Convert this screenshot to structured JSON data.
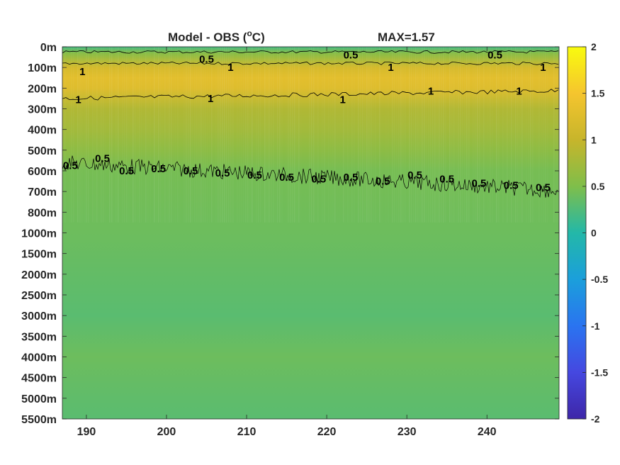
{
  "chart_data": {
    "type": "heatmap",
    "title": "Model - OBS (°C)",
    "title_parts": {
      "text": "Model - OBS (",
      "superscript": "o",
      "unit_tail": "C)"
    },
    "annotation": "MAX=1.57",
    "xlabel": "",
    "ylabel": "",
    "x_ticks": [
      190,
      200,
      210,
      220,
      230,
      240
    ],
    "xlim": [
      187,
      249
    ],
    "y_tick_labels": [
      "0m",
      "100m",
      "200m",
      "300m",
      "400m",
      "500m",
      "600m",
      "700m",
      "800m",
      "1000m",
      "1500m",
      "2000m",
      "2500m",
      "3000m",
      "3500m",
      "4000m",
      "4500m",
      "5000m",
      "5500m"
    ],
    "y_values": [
      0,
      100,
      200,
      300,
      400,
      500,
      600,
      700,
      800,
      1000,
      1500,
      2000,
      2500,
      3000,
      3500,
      4000,
      4500,
      5000,
      5500
    ],
    "colorbar": {
      "range": [
        -2,
        2
      ],
      "ticks": [
        2,
        1.5,
        1,
        0.5,
        0,
        -0.5,
        -1,
        -1.5,
        -2
      ],
      "tick_labels": [
        "2",
        "1.5",
        "1",
        "0.5",
        "0",
        "-0.5",
        "-1",
        "-1.5",
        "-2"
      ],
      "colormap": "parula"
    },
    "depth_profile": [
      {
        "depth_m": 0,
        "value": 0.2
      },
      {
        "depth_m": 30,
        "value": 0.55
      },
      {
        "depth_m": 100,
        "value": 1.15
      },
      {
        "depth_m": 150,
        "value": 1.3
      },
      {
        "depth_m": 200,
        "value": 1.25
      },
      {
        "depth_m": 300,
        "value": 0.85
      },
      {
        "depth_m": 400,
        "value": 0.75
      },
      {
        "depth_m": 500,
        "value": 0.6
      },
      {
        "depth_m": 600,
        "value": 0.45
      },
      {
        "depth_m": 800,
        "value": 0.42
      },
      {
        "depth_m": 1000,
        "value": 0.4
      },
      {
        "depth_m": 2000,
        "value": 0.35
      },
      {
        "depth_m": 3000,
        "value": 0.3
      },
      {
        "depth_m": 4000,
        "value": 0.4
      },
      {
        "depth_m": 5000,
        "value": 0.33
      },
      {
        "depth_m": 5500,
        "value": 0.3
      }
    ],
    "contours": [
      {
        "level": 0.5,
        "labels": [
          {
            "text": "0.5",
            "x": 205,
            "depth_m": 60
          },
          {
            "text": "0.5",
            "x": 223,
            "depth_m": 40
          },
          {
            "text": "0.5",
            "x": 241,
            "depth_m": 40
          }
        ]
      },
      {
        "level": 1,
        "labels": [
          {
            "text": "1",
            "x": 189.5,
            "depth_m": 120
          },
          {
            "text": "1",
            "x": 208,
            "depth_m": 100
          },
          {
            "text": "1",
            "x": 228,
            "depth_m": 100
          },
          {
            "text": "1",
            "x": 247,
            "depth_m": 100
          },
          {
            "text": "1",
            "x": 189,
            "depth_m": 255
          },
          {
            "text": "1",
            "x": 205.5,
            "depth_m": 250
          },
          {
            "text": "1",
            "x": 222,
            "depth_m": 255
          },
          {
            "text": "1",
            "x": 233,
            "depth_m": 215
          },
          {
            "text": "1",
            "x": 244,
            "depth_m": 215
          }
        ]
      },
      {
        "level": 0.5,
        "labels": [
          {
            "text": "0.5",
            "x": 188,
            "depth_m": 575
          },
          {
            "text": "0.5",
            "x": 192,
            "depth_m": 540
          },
          {
            "text": "0.5",
            "x": 195,
            "depth_m": 600
          },
          {
            "text": "0.5",
            "x": 199,
            "depth_m": 590
          },
          {
            "text": "0.5",
            "x": 203,
            "depth_m": 600
          },
          {
            "text": "0.5",
            "x": 207,
            "depth_m": 610
          },
          {
            "text": "0.5",
            "x": 211,
            "depth_m": 620
          },
          {
            "text": "0.5",
            "x": 215,
            "depth_m": 630
          },
          {
            "text": "0.5",
            "x": 219,
            "depth_m": 640
          },
          {
            "text": "0.5",
            "x": 223,
            "depth_m": 630
          },
          {
            "text": "0.5",
            "x": 227,
            "depth_m": 650
          },
          {
            "text": "0.5",
            "x": 231,
            "depth_m": 620
          },
          {
            "text": "0.5",
            "x": 235,
            "depth_m": 640
          },
          {
            "text": "0.5",
            "x": 239,
            "depth_m": 660
          },
          {
            "text": "0.5",
            "x": 243,
            "depth_m": 670
          },
          {
            "text": "0.5",
            "x": 247,
            "depth_m": 680
          }
        ]
      }
    ],
    "grid": false,
    "legend": "colorbar-right"
  }
}
